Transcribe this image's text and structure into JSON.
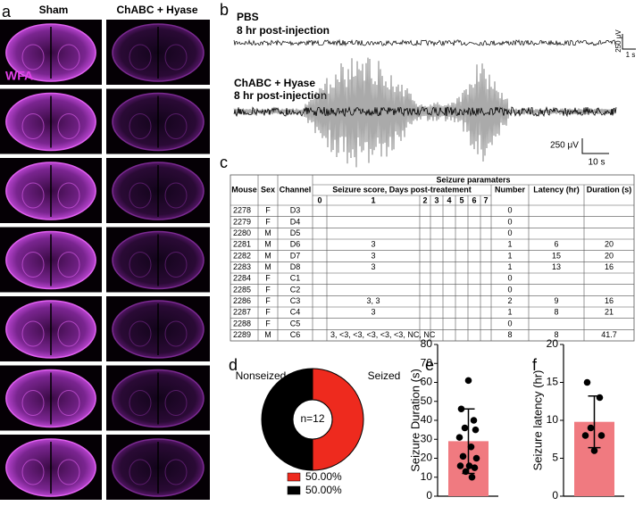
{
  "panel_labels": [
    "a",
    "b",
    "c",
    "d",
    "e",
    "f"
  ],
  "panel_a": {
    "columns": [
      "Sham",
      "ChABC + Hyase"
    ],
    "stain": "WFA"
  },
  "panel_b": {
    "traces": [
      {
        "condition": "PBS",
        "time": "8 hr post-injection",
        "scale_y": "250 μV",
        "scale_x": "1 s"
      },
      {
        "condition": "ChABC + Hyase",
        "time": "8 hr post-injection",
        "scale_y": "250 μV",
        "scale_x": "10 s"
      }
    ]
  },
  "table": {
    "group_header": "Seizure paramaters",
    "score_header": "Seizure score, Days post-treatement",
    "left_columns": [
      "Mouse",
      "Sex",
      "Channel"
    ],
    "right_columns": [
      "Number",
      "Latency (hr)",
      "Duration (s)"
    ],
    "days": [
      0,
      1,
      2,
      3,
      4,
      5,
      6,
      7
    ],
    "rows": [
      [
        2278,
        "F",
        "D3",
        null,
        null,
        null,
        null,
        null,
        null,
        null,
        null,
        0,
        null,
        null
      ],
      [
        2279,
        "F",
        "D4",
        null,
        null,
        null,
        null,
        null,
        null,
        null,
        null,
        0,
        null,
        null
      ],
      [
        2280,
        "M",
        "D5",
        null,
        null,
        null,
        null,
        null,
        null,
        null,
        null,
        0,
        null,
        null
      ],
      [
        2281,
        "M",
        "D6",
        null,
        "3",
        null,
        null,
        null,
        null,
        null,
        null,
        1,
        6,
        20
      ],
      [
        2282,
        "M",
        "D7",
        null,
        "3",
        null,
        null,
        null,
        null,
        null,
        null,
        1,
        15,
        20
      ],
      [
        2283,
        "M",
        "D8",
        null,
        "3",
        null,
        null,
        null,
        null,
        null,
        null,
        1,
        13,
        16
      ],
      [
        2284,
        "F",
        "C1",
        null,
        null,
        null,
        null,
        null,
        null,
        null,
        null,
        0,
        null,
        null
      ],
      [
        2285,
        "F",
        "C2",
        null,
        null,
        null,
        null,
        null,
        null,
        null,
        null,
        0,
        null,
        null
      ],
      [
        2286,
        "F",
        "C3",
        null,
        "3, 3",
        null,
        null,
        null,
        null,
        null,
        null,
        2,
        9,
        16
      ],
      [
        2287,
        "F",
        "C4",
        null,
        "3",
        null,
        null,
        null,
        null,
        null,
        null,
        1,
        8,
        21
      ],
      [
        2288,
        "F",
        "C5",
        null,
        null,
        null,
        null,
        null,
        null,
        null,
        null,
        0,
        null,
        null
      ],
      [
        2289,
        "M",
        "C6",
        null,
        "3, <3, <3, <3, <3, <3, NC, NC",
        null,
        null,
        null,
        null,
        null,
        null,
        8,
        8,
        41.7
      ]
    ]
  },
  "chart_data": [
    {
      "type": "pie",
      "center_label": "n=12",
      "categories": [
        "Seized",
        "Nonseized"
      ],
      "values": [
        50,
        50
      ],
      "value_labels": [
        "50.00%",
        "50.00%"
      ],
      "colors": [
        "#ee2a1e",
        "#000000"
      ]
    },
    {
      "type": "bar",
      "ylabel": "Seizure Duration (s)",
      "value": 29,
      "error": 17,
      "points": [
        61,
        46,
        40,
        36,
        35,
        31,
        26,
        21,
        20,
        16,
        16,
        15,
        13,
        10
      ],
      "color": "#f07a80",
      "ylim": [
        0,
        80
      ],
      "yticks": [
        0,
        10,
        20,
        30,
        40,
        50,
        60,
        70,
        80
      ]
    },
    {
      "type": "bar",
      "ylabel": "Seizure latency (hr)",
      "value": 9.8,
      "error": 3.4,
      "points": [
        6,
        15,
        13,
        9,
        8,
        8
      ],
      "color": "#f07a80",
      "ylim": [
        0,
        20
      ],
      "yticks": [
        0,
        5,
        10,
        15,
        20
      ]
    }
  ]
}
